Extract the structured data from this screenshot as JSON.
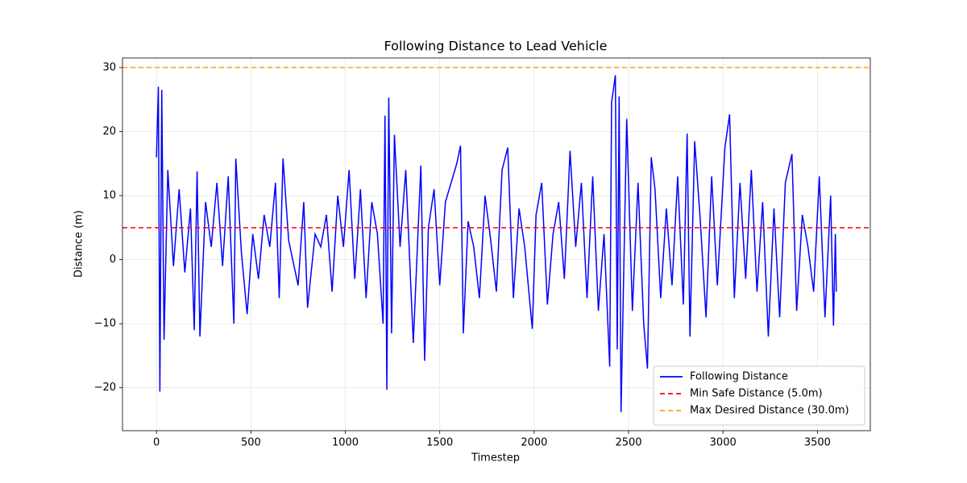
{
  "chart_data": {
    "type": "line",
    "title": "Following Distance to Lead Vehicle",
    "xlabel": "Timestep",
    "ylabel": "Distance (m)",
    "xlim": [
      -180,
      3780
    ],
    "ylim": [
      -26.7,
      31.5
    ],
    "xticks": [
      0,
      500,
      1000,
      1500,
      2000,
      2500,
      3000,
      3500
    ],
    "yticks": [
      {
        "value": -20,
        "label": "−20"
      },
      {
        "value": -10,
        "label": "−10"
      },
      0,
      10,
      20,
      30
    ],
    "grid": true,
    "legend": "lower right",
    "x": [
      0,
      10,
      18,
      28,
      40,
      60,
      90,
      120,
      150,
      180,
      200,
      215,
      230,
      260,
      290,
      320,
      350,
      380,
      410,
      420,
      450,
      480,
      510,
      540,
      570,
      600,
      630,
      650,
      670,
      700,
      750,
      780,
      800,
      840,
      870,
      900,
      930,
      960,
      990,
      1020,
      1050,
      1080,
      1110,
      1140,
      1170,
      1200,
      1210,
      1220,
      1230,
      1245,
      1260,
      1290,
      1320,
      1360,
      1400,
      1420,
      1440,
      1470,
      1500,
      1530,
      1590,
      1610,
      1625,
      1650,
      1680,
      1710,
      1740,
      1770,
      1800,
      1830,
      1860,
      1890,
      1920,
      1950,
      1990,
      2010,
      2040,
      2070,
      2100,
      2130,
      2160,
      2190,
      2220,
      2250,
      2280,
      2310,
      2340,
      2370,
      2400,
      2410,
      2430,
      2440,
      2450,
      2460,
      2490,
      2520,
      2550,
      2580,
      2600,
      2620,
      2640,
      2670,
      2700,
      2730,
      2760,
      2790,
      2810,
      2825,
      2850,
      2880,
      2910,
      2940,
      2970,
      3010,
      3035,
      3060,
      3090,
      3120,
      3150,
      3180,
      3210,
      3240,
      3270,
      3300,
      3330,
      3365,
      3390,
      3420,
      3450,
      3480,
      3510,
      3540,
      3570,
      3585,
      3595,
      3600
    ],
    "series": [
      {
        "name": "Following Distance",
        "color": "#0000ff",
        "values": [
          16,
          27,
          -20.6,
          26.5,
          -12.5,
          14,
          -1,
          11,
          -2,
          8,
          -11,
          13.8,
          -12,
          9,
          2,
          12,
          -1,
          13,
          -10,
          15.8,
          1,
          -8.5,
          4,
          -3,
          7,
          2,
          12,
          -6,
          15.8,
          3,
          -4,
          9,
          -7.5,
          4,
          2,
          7,
          -5,
          10,
          2,
          14,
          -3,
          11,
          -6,
          9,
          4,
          -10,
          22.5,
          -20.3,
          25.3,
          -11.5,
          19.5,
          2,
          14,
          -13,
          14.7,
          -15.8,
          5,
          11,
          -4,
          9,
          15,
          17.8,
          -11.5,
          6,
          2,
          -6,
          10,
          3,
          -5,
          14,
          17.5,
          -6,
          8,
          2,
          -10.8,
          7,
          12,
          -7,
          4,
          9,
          -3,
          17,
          2,
          12,
          -6,
          13,
          -8,
          4,
          -16.7,
          24.5,
          28.8,
          -14,
          25.5,
          -23.8,
          22,
          -8,
          12,
          -10,
          -17,
          16,
          11,
          -6,
          8,
          -4,
          13,
          -7,
          19.7,
          -12,
          18.5,
          6,
          -9,
          13,
          -4,
          17.5,
          22.7,
          -6,
          12,
          -3,
          14,
          -5,
          9,
          -12,
          8,
          -9,
          12,
          16.5,
          -8,
          7,
          2,
          -5,
          13,
          -9,
          10,
          -10.3,
          4,
          -5
        ]
      }
    ],
    "reference_lines": [
      {
        "name": "Min Safe Distance (5.0m)",
        "value": 5,
        "color": "#ff0000"
      },
      {
        "name": "Max Desired Distance (30.0m)",
        "value": 30,
        "color": "#ffa500"
      }
    ]
  }
}
